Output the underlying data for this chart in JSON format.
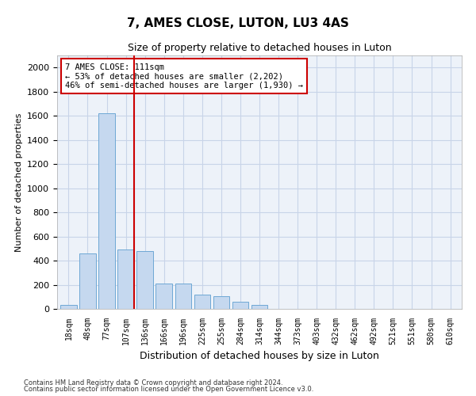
{
  "title": "7, AMES CLOSE, LUTON, LU3 4AS",
  "subtitle": "Size of property relative to detached houses in Luton",
  "xlabel": "Distribution of detached houses by size in Luton",
  "ylabel": "Number of detached properties",
  "footer_line1": "Contains HM Land Registry data © Crown copyright and database right 2024.",
  "footer_line2": "Contains public sector information licensed under the Open Government Licence v3.0.",
  "annotation_line1": "7 AMES CLOSE: 111sqm",
  "annotation_line2": "← 53% of detached houses are smaller (2,202)",
  "annotation_line3": "46% of semi-detached houses are larger (1,930) →",
  "bar_color": "#c5d8ef",
  "bar_edge_color": "#6ea8d5",
  "vline_color": "#cc0000",
  "annotation_box_edge": "#cc0000",
  "categories": [
    "18sqm",
    "48sqm",
    "77sqm",
    "107sqm",
    "136sqm",
    "166sqm",
    "196sqm",
    "225sqm",
    "255sqm",
    "284sqm",
    "314sqm",
    "344sqm",
    "373sqm",
    "403sqm",
    "432sqm",
    "462sqm",
    "492sqm",
    "521sqm",
    "551sqm",
    "580sqm",
    "610sqm"
  ],
  "values": [
    30,
    460,
    1620,
    490,
    480,
    210,
    210,
    120,
    105,
    60,
    35,
    0,
    0,
    0,
    0,
    0,
    0,
    0,
    0,
    0,
    0
  ],
  "ylim": [
    0,
    2100
  ],
  "yticks": [
    0,
    200,
    400,
    600,
    800,
    1000,
    1200,
    1400,
    1600,
    1800,
    2000
  ],
  "vline_x_index": 3,
  "grid_color": "#c8d4e8",
  "bg_color": "#edf2f9"
}
